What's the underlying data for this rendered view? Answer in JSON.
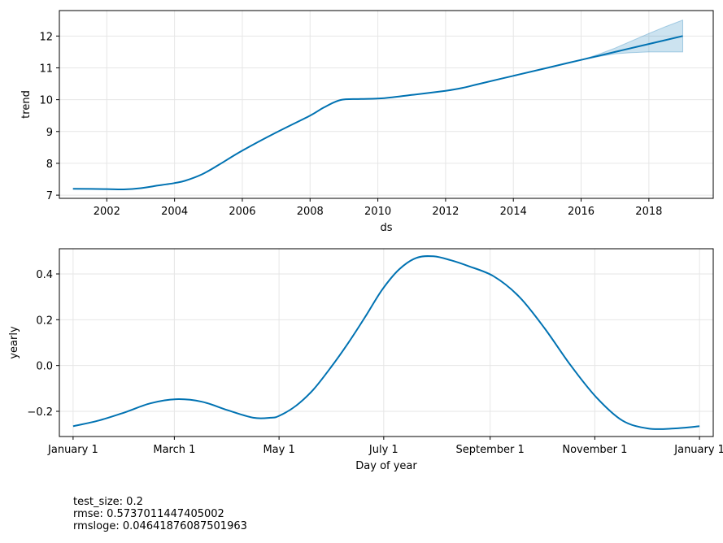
{
  "chart_data": [
    {
      "type": "line",
      "xlabel": "ds",
      "ylabel": "trend",
      "xlim": [
        2000.6,
        2019.9
      ],
      "ylim": [
        6.9,
        12.8
      ],
      "x_ticks": [
        2002,
        2004,
        2006,
        2008,
        2010,
        2012,
        2014,
        2016,
        2018
      ],
      "x_tick_labels": [
        "2002",
        "2004",
        "2006",
        "2008",
        "2010",
        "2012",
        "2014",
        "2016",
        "2018"
      ],
      "y_ticks": [
        7,
        8,
        9,
        10,
        11,
        12
      ],
      "y_tick_labels": [
        "7",
        "8",
        "9",
        "10",
        "11",
        "12"
      ],
      "grid": true,
      "line_color": "#0072B2",
      "band_color": "#0072B2",
      "series": [
        {
          "x": [
            2001.0,
            2002.0,
            2002.5,
            2003.0,
            2003.5,
            2004.0,
            2004.3,
            2004.8,
            2005.3,
            2006.0,
            2007.0,
            2008.0,
            2008.4,
            2008.9,
            2009.5,
            2010.2,
            2011.0,
            2012.0,
            2012.5,
            2013.0,
            2014.0,
            2015.0,
            2016.0,
            2017.0,
            2018.0,
            2019.0
          ],
          "y": [
            7.2,
            7.19,
            7.18,
            7.22,
            7.3,
            7.38,
            7.45,
            7.65,
            7.95,
            8.4,
            8.97,
            9.5,
            9.75,
            9.99,
            10.02,
            10.05,
            10.15,
            10.28,
            10.37,
            10.5,
            10.75,
            11.0,
            11.25,
            11.5,
            11.75,
            12.0
          ]
        }
      ],
      "uncertainty": {
        "x": [
          2016.0,
          2016.5,
          2017.0,
          2017.5,
          2018.0,
          2018.5,
          2019.0
        ],
        "lower": [
          11.25,
          11.35,
          11.44,
          11.48,
          11.5,
          11.5,
          11.5
        ],
        "upper": [
          11.25,
          11.42,
          11.62,
          11.85,
          12.08,
          12.3,
          12.5
        ]
      }
    },
    {
      "type": "line",
      "xlabel": "Day of year",
      "ylabel": "yearly",
      "xlim": [
        -8,
        373
      ],
      "ylim": [
        -0.31,
        0.51
      ],
      "x_ticks": [
        0,
        59,
        120,
        181,
        243,
        304,
        365
      ],
      "x_tick_labels": [
        "January 1",
        "March 1",
        "May 1",
        "July 1",
        "September 1",
        "November 1",
        "January 1"
      ],
      "y_ticks": [
        -0.2,
        0.0,
        0.2,
        0.4
      ],
      "y_tick_labels": [
        "−0.2",
        "0.0",
        "0.2",
        "0.4"
      ],
      "grid": true,
      "line_color": "#0072B2",
      "series": [
        {
          "x": [
            0,
            15,
            30,
            45,
            60,
            75,
            90,
            105,
            115,
            120,
            130,
            140,
            150,
            160,
            170,
            180,
            190,
            200,
            210,
            220,
            230,
            245,
            260,
            275,
            290,
            305,
            320,
            335,
            350,
            365
          ],
          "y": [
            -0.265,
            -0.24,
            -0.205,
            -0.165,
            -0.147,
            -0.158,
            -0.195,
            -0.228,
            -0.228,
            -0.22,
            -0.175,
            -0.105,
            -0.01,
            0.095,
            0.21,
            0.33,
            0.42,
            0.47,
            0.477,
            0.46,
            0.435,
            0.39,
            0.3,
            0.16,
            0.0,
            -0.14,
            -0.24,
            -0.275,
            -0.275,
            -0.265
          ]
        }
      ]
    }
  ],
  "metrics": {
    "test_size": "test_size: 0.2",
    "rmse": "rmse: 0.5737011447405002",
    "rmsloge": "rmsloge: 0.04641876087501963"
  }
}
